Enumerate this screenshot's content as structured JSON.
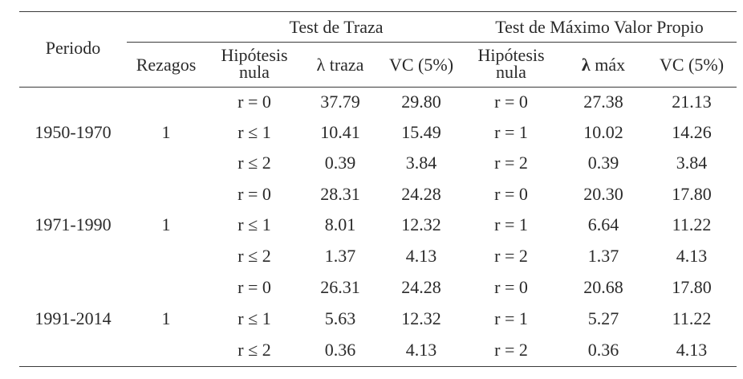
{
  "table": {
    "col_period": "Periodo",
    "group_trace": "Test de Traza",
    "group_max": "Test de Máximo Valor Propio",
    "col_lags": "Rezagos",
    "col_hyp_trace_1": "Hipótesis",
    "col_hyp_trace_2": "nula",
    "col_lambda_trace": "λ traza",
    "col_cv_trace": "VC (5%)",
    "col_hyp_max_1": "Hipótesis",
    "col_hyp_max_2": "nula",
    "col_lambda_max_sym": "λ",
    "col_lambda_max_txt": "máx",
    "col_cv_max": "VC (5%)",
    "periods": [
      {
        "period": "1950-1970",
        "lags": "1",
        "rows": [
          {
            "h_trace": "r = 0",
            "l_trace": "37.79",
            "cv_trace": "29.80",
            "h_max": "r = 0",
            "l_max": "27.38",
            "cv_max": "21.13"
          },
          {
            "h_trace": "r ≤ 1",
            "l_trace": "10.41",
            "cv_trace": "15.49",
            "h_max": "r = 1",
            "l_max": "10.02",
            "cv_max": "14.26"
          },
          {
            "h_trace": "r ≤ 2",
            "l_trace": "0.39",
            "cv_trace": "3.84",
            "h_max": "r = 2",
            "l_max": "0.39",
            "cv_max": "3.84"
          }
        ]
      },
      {
        "period": "1971-1990",
        "lags": "1",
        "rows": [
          {
            "h_trace": "r = 0",
            "l_trace": "28.31",
            "cv_trace": "24.28",
            "h_max": "r = 0",
            "l_max": "20.30",
            "cv_max": "17.80"
          },
          {
            "h_trace": "r ≤ 1",
            "l_trace": "8.01",
            "cv_trace": "12.32",
            "h_max": "r = 1",
            "l_max": "6.64",
            "cv_max": "11.22"
          },
          {
            "h_trace": "r ≤ 2",
            "l_trace": "1.37",
            "cv_trace": "4.13",
            "h_max": "r = 2",
            "l_max": "1.37",
            "cv_max": "4.13"
          }
        ]
      },
      {
        "period": "1991-2014",
        "lags": "1",
        "rows": [
          {
            "h_trace": "r = 0",
            "l_trace": "26.31",
            "cv_trace": "24.28",
            "h_max": "r = 0",
            "l_max": "20.68",
            "cv_max": "17.80"
          },
          {
            "h_trace": "r ≤ 1",
            "l_trace": "5.63",
            "cv_trace": "12.32",
            "h_max": "r = 1",
            "l_max": "5.27",
            "cv_max": "11.22"
          },
          {
            "h_trace": "r ≤ 2",
            "l_trace": "0.36",
            "cv_trace": "4.13",
            "h_max": "r = 2",
            "l_max": "0.36",
            "cv_max": "4.13"
          }
        ]
      }
    ]
  }
}
